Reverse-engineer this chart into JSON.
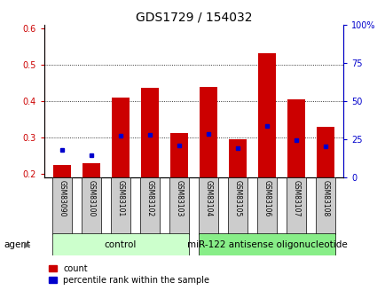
{
  "title": "GDS1729 / 154032",
  "samples": [
    "GSM83090",
    "GSM83100",
    "GSM83101",
    "GSM83102",
    "GSM83103",
    "GSM83104",
    "GSM83105",
    "GSM83106",
    "GSM83107",
    "GSM83108"
  ],
  "red_values": [
    0.225,
    0.228,
    0.41,
    0.435,
    0.313,
    0.438,
    0.295,
    0.532,
    0.405,
    0.33
  ],
  "blue_values": [
    0.265,
    0.25,
    0.305,
    0.308,
    0.277,
    0.31,
    0.27,
    0.332,
    0.292,
    0.275
  ],
  "ylim_left": [
    0.19,
    0.61
  ],
  "ylim_right": [
    0,
    100
  ],
  "yticks_left": [
    0.2,
    0.3,
    0.4,
    0.5,
    0.6
  ],
  "yticks_right": [
    0,
    25,
    50,
    75,
    100
  ],
  "ytick_labels_right": [
    "0",
    "25",
    "50",
    "75",
    "100%"
  ],
  "red_color": "#cc0000",
  "blue_color": "#0000cc",
  "bar_width": 0.6,
  "control_label": "control",
  "treatment_label": "miR-122 antisense oligonucleotide",
  "agent_label": "agent",
  "legend_red": "count",
  "legend_blue": "percentile rank within the sample",
  "bg_label": "#cccccc",
  "bg_control": "#ccffcc",
  "bg_treatment": "#88ee88",
  "title_fontsize": 10,
  "tick_fontsize": 7,
  "sample_fontsize": 5.5,
  "agent_fontsize": 7.5,
  "legend_fontsize": 7
}
